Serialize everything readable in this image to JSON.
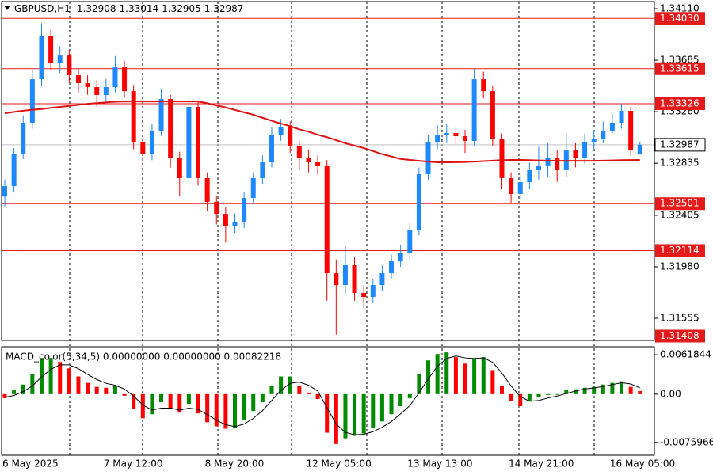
{
  "chart_data": [
    {
      "type": "candlestick",
      "title": "GBPUSD,H1",
      "categories": [
        "6 May 2025",
        null,
        null,
        null,
        null,
        null,
        null,
        null,
        null,
        null,
        null,
        "7 May 12:00",
        null,
        null,
        null,
        null,
        null,
        null,
        null,
        null,
        null,
        null,
        "8 May 20:00",
        null,
        null,
        null,
        null,
        null,
        null,
        null,
        null,
        null,
        null,
        "12 May 05:00",
        null,
        null,
        null,
        null,
        null,
        null,
        null,
        null,
        null,
        null,
        "13 May 13:00",
        null,
        null,
        null,
        null,
        null,
        null,
        null,
        null,
        null,
        null,
        "14 May 21:00",
        null,
        null,
        null,
        null,
        null,
        null,
        null,
        null,
        null,
        null,
        "16 May 05:00",
        null,
        null,
        null
      ],
      "open": [
        1.3256,
        1.32646,
        1.32908,
        1.33169,
        1.33528,
        1.33888,
        1.33659,
        1.33724,
        1.33561,
        1.33496,
        1.33463,
        1.33398,
        1.33463,
        1.33626,
        1.3343,
        1.33006,
        1.32908,
        1.33104,
        1.33365,
        1.32875,
        1.32712,
        1.333,
        1.32712,
        1.32516,
        1.32417,
        1.32319,
        1.32352,
        1.32548,
        1.32712,
        1.32842,
        1.33071,
        1.33136,
        1.32973,
        1.32875,
        1.32842,
        1.3281,
        1.31927,
        1.31829,
        1.31993,
        1.31764,
        1.31731,
        1.31829,
        1.31927,
        1.32025,
        1.32091,
        1.32287,
        1.32744,
        1.33006,
        1.33071,
        1.33084,
        1.33058,
        1.33019,
        1.33528,
        1.3343,
        1.33038,
        1.32712,
        1.32581,
        1.32679,
        1.32777,
        1.3281,
        1.32875,
        1.32777,
        1.3294,
        1.32875,
        1.33006,
        1.33038,
        1.33104,
        1.33169,
        1.33267,
        1.32908
      ],
      "high": [
        1.327,
        1.3296,
        1.3323,
        1.336,
        1.3399,
        1.3394,
        1.338,
        1.3377,
        1.3362,
        1.3356,
        1.3352,
        1.3353,
        1.3372,
        1.3368,
        1.3348,
        1.3306,
        1.3316,
        1.3345,
        1.334,
        1.3293,
        1.3338,
        1.3334,
        1.3276,
        1.3256,
        1.3247,
        1.3242,
        1.326,
        1.3276,
        1.329,
        1.3313,
        1.332,
        1.3318,
        1.3302,
        1.3295,
        1.329,
        1.3286,
        1.3204,
        1.3215,
        1.3206,
        1.3183,
        1.3188,
        1.3199,
        1.3208,
        1.3216,
        1.3234,
        1.328,
        1.3307,
        1.3315,
        1.3316,
        1.3314,
        1.3311,
        1.33615,
        1.3359,
        1.3347,
        1.3308,
        1.3276,
        1.3274,
        1.3284,
        1.3297,
        1.33,
        1.3294,
        1.3308,
        1.33,
        1.3308,
        1.3311,
        1.3318,
        1.3324,
        1.3333,
        1.333,
        1.33014
      ],
      "low": [
        1.3248,
        1.326,
        1.3287,
        1.3312,
        1.3347,
        1.336,
        1.3358,
        1.335,
        1.3342,
        1.334,
        1.333,
        1.3334,
        1.3342,
        1.3338,
        1.3295,
        1.3282,
        1.3286,
        1.3306,
        1.328,
        1.3256,
        1.3264,
        1.3265,
        1.3244,
        1.3233,
        1.3218,
        1.3226,
        1.323,
        1.325,
        1.3266,
        1.328,
        1.3302,
        1.3292,
        1.3278,
        1.3276,
        1.3274,
        1.317,
        1.3142,
        1.3176,
        1.317,
        1.3164,
        1.3168,
        1.3178,
        1.3188,
        1.3198,
        1.3204,
        1.3224,
        1.327,
        1.3295,
        1.33,
        1.3299,
        1.3292,
        1.3298,
        1.3337,
        1.3298,
        1.3262,
        1.325,
        1.3253,
        1.3262,
        1.327,
        1.3272,
        1.3268,
        1.3272,
        1.328,
        1.3283,
        1.3295,
        1.33,
        1.3308,
        1.3312,
        1.329,
        1.32905
      ],
      "close": [
        1.32646,
        1.32908,
        1.33169,
        1.33528,
        1.33888,
        1.33659,
        1.33724,
        1.33561,
        1.33496,
        1.33463,
        1.33398,
        1.33463,
        1.33626,
        1.3343,
        1.33006,
        1.32908,
        1.33104,
        1.33365,
        1.32875,
        1.32712,
        1.333,
        1.32712,
        1.32516,
        1.32417,
        1.32319,
        1.32352,
        1.32548,
        1.32712,
        1.32842,
        1.33071,
        1.33136,
        1.32973,
        1.32875,
        1.32842,
        1.3281,
        1.31927,
        1.31829,
        1.31993,
        1.31764,
        1.31731,
        1.31829,
        1.31927,
        1.32025,
        1.32091,
        1.32287,
        1.32744,
        1.33006,
        1.33071,
        1.33084,
        1.33058,
        1.33019,
        1.33528,
        1.3343,
        1.33038,
        1.32712,
        1.32581,
        1.32679,
        1.32777,
        1.3281,
        1.32875,
        1.32777,
        1.3294,
        1.32875,
        1.33006,
        1.33038,
        1.33104,
        1.33169,
        1.33267,
        1.3294,
        1.32987
      ],
      "up_color": "#1e88ff",
      "down_color": "#ff0000",
      "moving_average": {
        "color": "#dd1111",
        "values": [
          1.33247,
          1.33258,
          1.33268,
          1.33276,
          1.33282,
          1.33292,
          1.333,
          1.33308,
          1.33317,
          1.33325,
          1.33331,
          1.33337,
          1.33342,
          1.33345,
          1.33345,
          1.33345,
          1.33345,
          1.33345,
          1.33345,
          1.33345,
          1.33345,
          1.33345,
          1.3333,
          1.33312,
          1.33295,
          1.33275,
          1.33255,
          1.33235,
          1.3321,
          1.33185,
          1.33162,
          1.3314,
          1.33115,
          1.33095,
          1.3307,
          1.3305,
          1.33025,
          1.33,
          1.3298,
          1.3296,
          1.32935,
          1.3291,
          1.3289,
          1.3287,
          1.32862,
          1.32855,
          1.32848,
          1.32842,
          1.32842,
          1.32843,
          1.32845,
          1.32848,
          1.32852,
          1.32856,
          1.3286,
          1.32862,
          1.32862,
          1.3286,
          1.32858,
          1.32856,
          1.32855,
          1.32855,
          1.32855,
          1.32855,
          1.32855,
          1.32856,
          1.32858,
          1.3286,
          1.32861,
          1.32862
        ]
      },
      "levels": [
        {
          "value": 1.3403,
          "label": "1.34030"
        },
        {
          "value": 1.33615,
          "label": "1.33615"
        },
        {
          "value": 1.33326,
          "label": "1.33326"
        },
        {
          "value": 1.32501,
          "label": "1.32501"
        },
        {
          "value": 1.32114,
          "label": "1.32114"
        },
        {
          "value": 1.31408,
          "label": "1.31408"
        }
      ],
      "level_color": "#e51a1a",
      "ylim": [
        1.31372,
        1.34169
      ],
      "yticks": [
        {
          "value": 1.3411,
          "label": "1.34110"
        },
        1.33685,
        {
          "value": 1.3326,
          "label": "1.33260"
        },
        1.32835,
        1.32405,
        {
          "value": 1.3198,
          "label": "1.31980"
        },
        1.31555
      ]
    },
    {
      "type": "macd",
      "title": "MACD_color(5,34,5) 0.00000000 0.00000000 0.00082218",
      "values": [
        -0.00063,
        0.00063,
        0.00151,
        0.00316,
        0.00568,
        0.00568,
        0.00505,
        0.00404,
        0.00278,
        0.00177,
        0.00114,
        0.00101,
        0.00126,
        -0.00025,
        -0.00227,
        -0.00379,
        -0.00316,
        -0.00126,
        -0.00227,
        -0.0029,
        -0.00151,
        -0.00303,
        -0.00442,
        -0.00505,
        -0.00543,
        -0.0053,
        -0.00404,
        -0.00265,
        -0.00126,
        0.00126,
        0.00278,
        0.00278,
        0.00126,
        0.00025,
        -0.00076,
        -0.00606,
        -0.00783,
        -0.00694,
        -0.00656,
        -0.00618,
        -0.0053,
        -0.00429,
        -0.00316,
        -0.00189,
        -0.00063,
        0.00316,
        0.0053,
        0.00631,
        0.00656,
        0.00581,
        0.0048,
        0.00555,
        0.00581,
        0.00379,
        0.00126,
        -0.00101,
        -0.00189,
        -0.00114,
        -0.0005,
        -0.00013,
        -0.0001,
        0.00063,
        0.00076,
        0.00101,
        0.00114,
        0.00151,
        0.00177,
        0.00202,
        0.00114,
        0.0005
      ],
      "signal": {
        "color": "#000000",
        "values": [
          -0.0005,
          -0.0002,
          0.0004,
          0.0013,
          0.0027,
          0.0039,
          0.0046,
          0.0046,
          0.004,
          0.0031,
          0.0023,
          0.0017,
          0.0014,
          0.0008,
          -0.0003,
          -0.0017,
          -0.0025,
          -0.0022,
          -0.0022,
          -0.0025,
          -0.0022,
          -0.0024,
          -0.0032,
          -0.0041,
          -0.0048,
          -0.0051,
          -0.0047,
          -0.0038,
          -0.0026,
          -0.001,
          0.0006,
          0.0017,
          0.0019,
          0.0014,
          0.0005,
          -0.0021,
          -0.0047,
          -0.006,
          -0.0064,
          -0.0063,
          -0.0059,
          -0.0052,
          -0.0043,
          -0.0031,
          -0.0018,
          0.0002,
          0.0024,
          0.0044,
          0.0056,
          0.006,
          0.0057,
          0.0056,
          0.0057,
          0.005,
          0.0033,
          0.0013,
          -0.0004,
          -0.0011,
          -0.001,
          -0.0006,
          -0.0003,
          0.0001,
          0.0005,
          0.0008,
          0.001,
          0.0012,
          0.0015,
          0.0018,
          0.0016,
          0.001
        ]
      },
      "up_color": "#008a00",
      "down_color": "#ff0000",
      "ylim": [
        -0.0096,
        0.00745
      ],
      "yticks": [
        0.0061844,
        {
          "value": 0,
          "label": "0.00"
        },
        -0.0075966
      ]
    }
  ]
}
